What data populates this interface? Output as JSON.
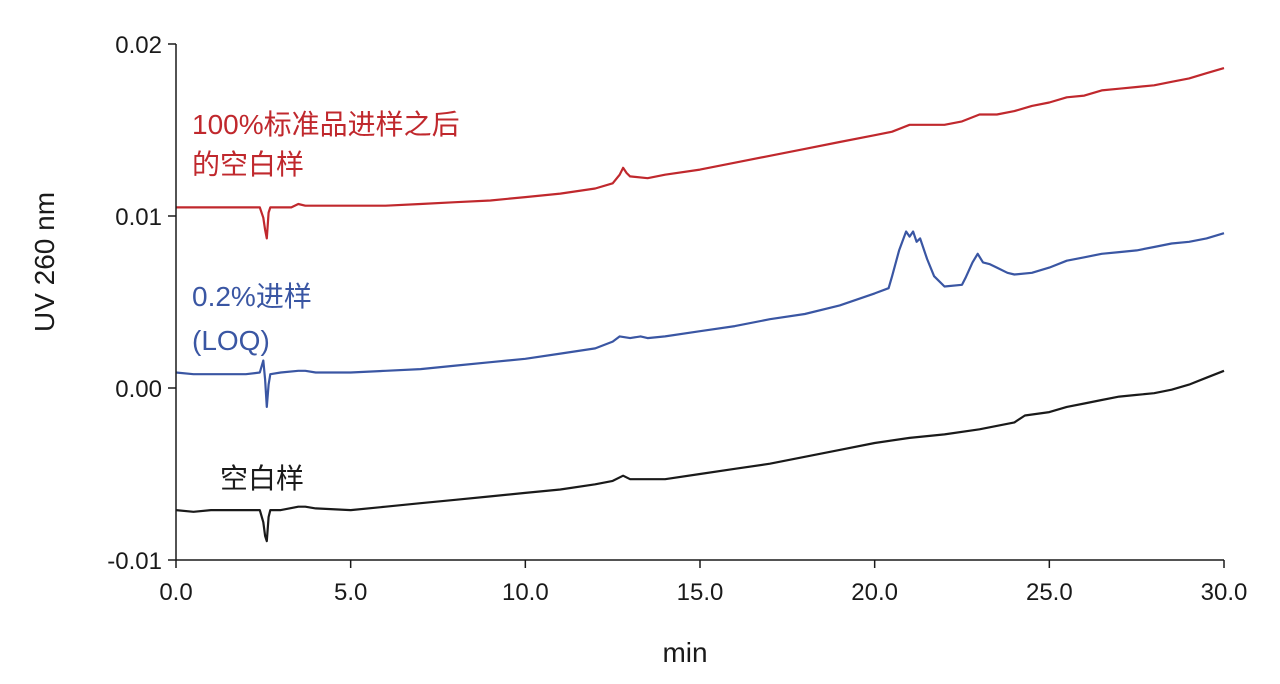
{
  "chart_data": {
    "type": "line",
    "title": "",
    "xlabel": "min",
    "ylabel": "UV 260 nm",
    "xlim": [
      0,
      30
    ],
    "ylim": [
      -0.01,
      0.02
    ],
    "x_ticks": [
      "0.0",
      "5.0",
      "10.0",
      "15.0",
      "20.0",
      "25.0",
      "30.0"
    ],
    "y_ticks": [
      "-0.01",
      "0.00",
      "0.01",
      "0.02"
    ],
    "grid": false,
    "series": [
      {
        "name": "100%标准品进样之后 的空白样",
        "label_lines": [
          "100%标准品进样之后",
          "的空白样"
        ],
        "color": "#c0282d",
        "points": [
          [
            0,
            0.0105
          ],
          [
            0.5,
            0.0105
          ],
          [
            1.0,
            0.0105
          ],
          [
            1.5,
            0.0105
          ],
          [
            2.0,
            0.0105
          ],
          [
            2.4,
            0.0105
          ],
          [
            2.5,
            0.0099
          ],
          [
            2.55,
            0.0092
          ],
          [
            2.6,
            0.0087
          ],
          [
            2.65,
            0.0102
          ],
          [
            2.7,
            0.0105
          ],
          [
            3.0,
            0.0105
          ],
          [
            3.3,
            0.0105
          ],
          [
            3.5,
            0.0107
          ],
          [
            3.7,
            0.0106
          ],
          [
            4.0,
            0.0106
          ],
          [
            5.0,
            0.0106
          ],
          [
            6.0,
            0.0106
          ],
          [
            7.0,
            0.0107
          ],
          [
            8.0,
            0.0108
          ],
          [
            9.0,
            0.0109
          ],
          [
            10.0,
            0.0111
          ],
          [
            11.0,
            0.0113
          ],
          [
            12.0,
            0.0116
          ],
          [
            12.5,
            0.0119
          ],
          [
            12.7,
            0.0124
          ],
          [
            12.8,
            0.0128
          ],
          [
            12.9,
            0.0125
          ],
          [
            13.0,
            0.0123
          ],
          [
            13.5,
            0.0122
          ],
          [
            14.0,
            0.0124
          ],
          [
            15.0,
            0.0127
          ],
          [
            16.0,
            0.0131
          ],
          [
            17.0,
            0.0135
          ],
          [
            18.0,
            0.0139
          ],
          [
            19.0,
            0.0143
          ],
          [
            20.0,
            0.0147
          ],
          [
            20.5,
            0.0149
          ],
          [
            21.0,
            0.0153
          ],
          [
            21.5,
            0.0153
          ],
          [
            22.0,
            0.0153
          ],
          [
            22.5,
            0.0155
          ],
          [
            23.0,
            0.0159
          ],
          [
            23.5,
            0.0159
          ],
          [
            24.0,
            0.0161
          ],
          [
            24.5,
            0.0164
          ],
          [
            25.0,
            0.0166
          ],
          [
            25.5,
            0.0169
          ],
          [
            26.0,
            0.017
          ],
          [
            26.5,
            0.0173
          ],
          [
            27.0,
            0.0174
          ],
          [
            27.5,
            0.0175
          ],
          [
            28.0,
            0.0176
          ],
          [
            28.5,
            0.0178
          ],
          [
            29.0,
            0.018
          ],
          [
            29.5,
            0.0183
          ],
          [
            30.0,
            0.0186
          ]
        ]
      },
      {
        "name": "0.2%进样 (LOQ)",
        "label_lines": [
          "0.2%进样",
          "(LOQ)"
        ],
        "color": "#3a56a3",
        "points": [
          [
            0,
            0.0009
          ],
          [
            0.5,
            0.0008
          ],
          [
            1.0,
            0.0008
          ],
          [
            1.5,
            0.0008
          ],
          [
            2.0,
            0.0008
          ],
          [
            2.4,
            0.0009
          ],
          [
            2.5,
            0.0016
          ],
          [
            2.55,
            0.0005
          ],
          [
            2.6,
            -0.0011
          ],
          [
            2.65,
            0.0002
          ],
          [
            2.7,
            0.0008
          ],
          [
            3.0,
            0.0009
          ],
          [
            3.5,
            0.001
          ],
          [
            3.7,
            0.001
          ],
          [
            4.0,
            0.0009
          ],
          [
            5.0,
            0.0009
          ],
          [
            6.0,
            0.001
          ],
          [
            7.0,
            0.0011
          ],
          [
            8.0,
            0.0013
          ],
          [
            9.0,
            0.0015
          ],
          [
            10.0,
            0.0017
          ],
          [
            11.0,
            0.002
          ],
          [
            12.0,
            0.0023
          ],
          [
            12.5,
            0.0027
          ],
          [
            12.7,
            0.003
          ],
          [
            13.0,
            0.0029
          ],
          [
            13.3,
            0.003
          ],
          [
            13.5,
            0.0029
          ],
          [
            14.0,
            0.003
          ],
          [
            15.0,
            0.0033
          ],
          [
            16.0,
            0.0036
          ],
          [
            17.0,
            0.004
          ],
          [
            18.0,
            0.0043
          ],
          [
            19.0,
            0.0048
          ],
          [
            20.0,
            0.0055
          ],
          [
            20.4,
            0.0058
          ],
          [
            20.5,
            0.0065
          ],
          [
            20.7,
            0.008
          ],
          [
            20.9,
            0.0091
          ],
          [
            21.0,
            0.0088
          ],
          [
            21.1,
            0.0091
          ],
          [
            21.2,
            0.0085
          ],
          [
            21.3,
            0.0087
          ],
          [
            21.5,
            0.0075
          ],
          [
            21.7,
            0.0065
          ],
          [
            22.0,
            0.0059
          ],
          [
            22.5,
            0.006
          ],
          [
            22.6,
            0.0064
          ],
          [
            22.8,
            0.0073
          ],
          [
            22.95,
            0.0078
          ],
          [
            23.1,
            0.0073
          ],
          [
            23.3,
            0.0072
          ],
          [
            23.5,
            0.007
          ],
          [
            23.8,
            0.0067
          ],
          [
            24.0,
            0.0066
          ],
          [
            24.5,
            0.0067
          ],
          [
            25.0,
            0.007
          ],
          [
            25.5,
            0.0074
          ],
          [
            26.0,
            0.0076
          ],
          [
            26.5,
            0.0078
          ],
          [
            27.0,
            0.0079
          ],
          [
            27.5,
            0.008
          ],
          [
            28.0,
            0.0082
          ],
          [
            28.5,
            0.0084
          ],
          [
            29.0,
            0.0085
          ],
          [
            29.5,
            0.0087
          ],
          [
            30.0,
            0.009
          ]
        ]
      },
      {
        "name": "空白样",
        "label_lines": [
          "空白样"
        ],
        "color": "#1a1a1a",
        "points": [
          [
            0,
            -0.0071
          ],
          [
            0.5,
            -0.0072
          ],
          [
            1.0,
            -0.0071
          ],
          [
            1.5,
            -0.0071
          ],
          [
            2.0,
            -0.0071
          ],
          [
            2.4,
            -0.0071
          ],
          [
            2.5,
            -0.0078
          ],
          [
            2.55,
            -0.0086
          ],
          [
            2.6,
            -0.0089
          ],
          [
            2.65,
            -0.0075
          ],
          [
            2.7,
            -0.0071
          ],
          [
            3.0,
            -0.0071
          ],
          [
            3.5,
            -0.0069
          ],
          [
            3.7,
            -0.0069
          ],
          [
            4.0,
            -0.007
          ],
          [
            5.0,
            -0.0071
          ],
          [
            6.0,
            -0.0069
          ],
          [
            7.0,
            -0.0067
          ],
          [
            8.0,
            -0.0065
          ],
          [
            9.0,
            -0.0063
          ],
          [
            10.0,
            -0.0061
          ],
          [
            11.0,
            -0.0059
          ],
          [
            12.0,
            -0.0056
          ],
          [
            12.5,
            -0.0054
          ],
          [
            12.8,
            -0.0051
          ],
          [
            13.0,
            -0.0053
          ],
          [
            14.0,
            -0.0053
          ],
          [
            15.0,
            -0.005
          ],
          [
            16.0,
            -0.0047
          ],
          [
            17.0,
            -0.0044
          ],
          [
            18.0,
            -0.004
          ],
          [
            19.0,
            -0.0036
          ],
          [
            20.0,
            -0.0032
          ],
          [
            21.0,
            -0.0029
          ],
          [
            22.0,
            -0.0027
          ],
          [
            23.0,
            -0.0024
          ],
          [
            24.0,
            -0.002
          ],
          [
            24.3,
            -0.0016
          ],
          [
            25.0,
            -0.0014
          ],
          [
            25.5,
            -0.0011
          ],
          [
            26.0,
            -0.0009
          ],
          [
            26.5,
            -0.0007
          ],
          [
            27.0,
            -0.0005
          ],
          [
            27.5,
            -0.0004
          ],
          [
            28.0,
            -0.0003
          ],
          [
            28.5,
            -0.0001
          ],
          [
            29.0,
            0.0002
          ],
          [
            29.5,
            0.0006
          ],
          [
            30.0,
            0.001
          ]
        ]
      }
    ]
  }
}
